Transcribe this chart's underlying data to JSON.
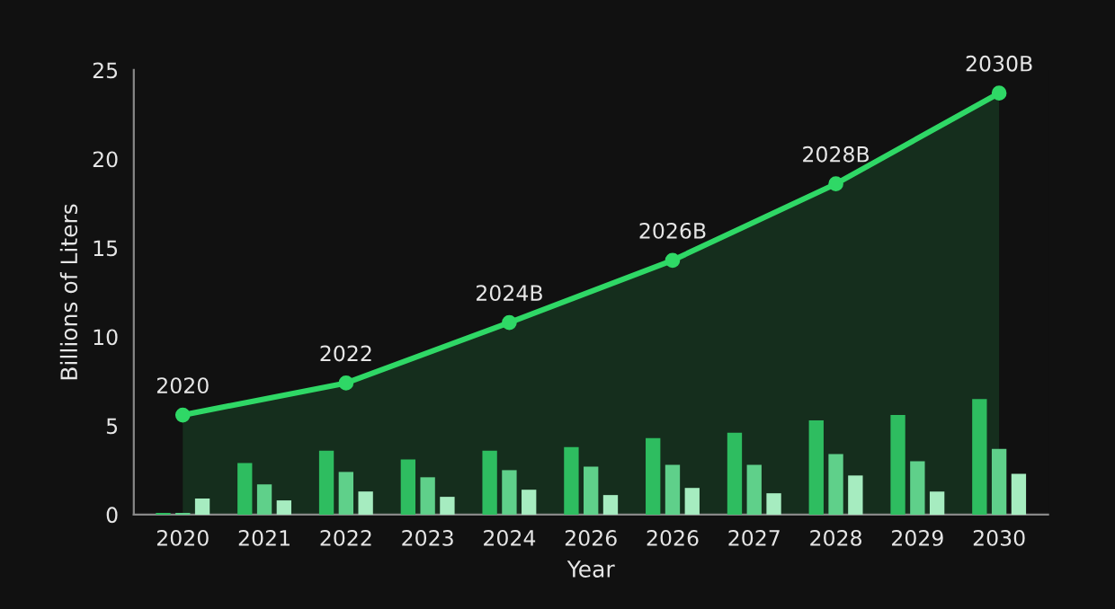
{
  "chart_data": {
    "type": "bar",
    "xlabel": "Year",
    "ylabel": "Billions of Liters",
    "categories": [
      "2020",
      "2021",
      "2022",
      "2023",
      "2024",
      "2026",
      "2026",
      "2027",
      "2028",
      "2029",
      "2030"
    ],
    "ylim": [
      0,
      25
    ],
    "yticks": [
      0,
      5,
      10,
      15,
      20,
      25
    ],
    "grid": false,
    "annotations": [
      "2020",
      "2022",
      "2024B",
      "2026B",
      "2028B",
      "2030B"
    ],
    "series": [
      {
        "color": "#2ebd60",
        "values": [
          0.1,
          2.9,
          3.6,
          3.1,
          3.6,
          3.8,
          4.3,
          4.6,
          5.3,
          5.6,
          6.5
        ]
      },
      {
        "color": "#5fd08a",
        "values": [
          0.1,
          1.7,
          2.4,
          2.1,
          2.5,
          2.7,
          2.8,
          2.8,
          3.4,
          3.0,
          3.7
        ]
      },
      {
        "color": "#a6ecc0",
        "values": [
          0.9,
          0.8,
          1.3,
          1.0,
          1.4,
          1.1,
          1.5,
          1.2,
          2.2,
          1.3,
          2.3
        ]
      },
      {
        "type": "area",
        "color": "#2fd866",
        "marker": "circle",
        "values": [
          5.6,
          null,
          7.4,
          null,
          10.8,
          null,
          14.3,
          null,
          18.6,
          null,
          23.7
        ]
      }
    ]
  }
}
